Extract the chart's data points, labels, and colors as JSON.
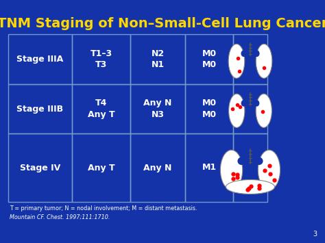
{
  "title": "TNM Staging of Non–Small-Cell Lung Cancer",
  "title_color": "#FFD700",
  "bg_color": "#1433a8",
  "cell_border_color": "#7799cc",
  "text_color": "#ffffff",
  "footnote1": "T = primary tumor; N = nodal involvement; M = distant metastasis.",
  "footnote2": "Mountain CF. Chest. 1997;111:1710.",
  "footnote_color": "#ffffff",
  "page_number": "3",
  "rows": [
    {
      "stage": "Stage IIIA",
      "T": "T1–3\nT3",
      "N": "N2\nN1",
      "M": "M0\nM0"
    },
    {
      "stage": "Stage IIIB",
      "T": "T4\nAny T",
      "N": "Any N\nN3",
      "M": "M0\nM0"
    },
    {
      "stage": "Stage IV",
      "T": "Any T",
      "N": "Any N",
      "M": "M1"
    }
  ]
}
